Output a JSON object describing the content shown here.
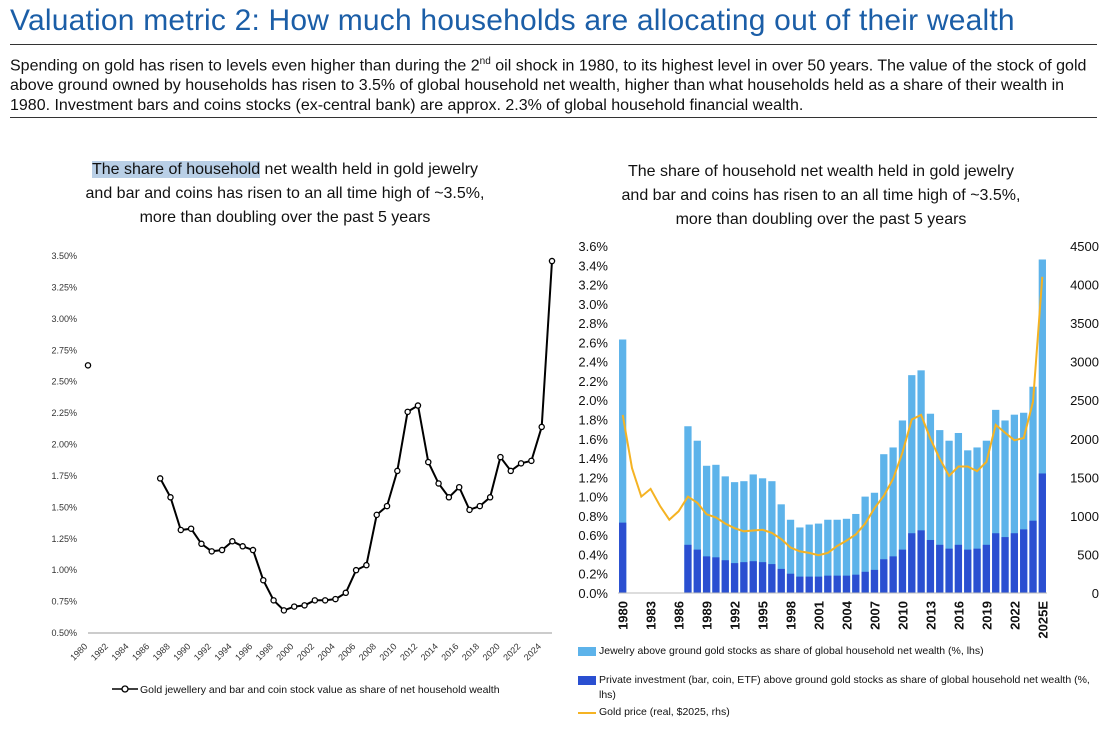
{
  "page": {
    "title": "Valuation metric 2: How much households are allocating out of their wealth",
    "intro_part1": "Spending on gold has risen to levels even higher than during the 2",
    "intro_sup": "nd",
    "intro_part2": " oil shock in 1980, to its highest level in over 50 years. The value of the stock of gold above ground owned by households has risen to 3.5% of global household net wealth, higher than what households held as a share of their wealth in 1980. Investment bars and coins stocks (ex-central bank) are approx. 2.3% of global household financial wealth."
  },
  "left_chart": {
    "heading_highlight": "The share of household",
    "heading_rest_line1": " net wealth held in gold jewelry",
    "heading_line2": "and bar and coins has risen to an all time high of ~3.5%,",
    "heading_line3": "more than doubling over the past 5 years"
  },
  "right_chart": {
    "heading_line1": "The share of household net wealth held in gold jewelry",
    "heading_line2": "and bar and coins has risen to an all time high of ~3.5%,",
    "heading_line3": "more than doubling over the past 5 years"
  },
  "colors": {
    "accent_title": "#1b5ea7",
    "jewelry": "#5db3ea",
    "private_investment": "#2a4fd1",
    "gold_price": "#f5b323",
    "line": "#000000"
  },
  "chart_data": [
    {
      "type": "line",
      "x": [
        1980,
        1987,
        1988,
        1989,
        1990,
        1991,
        1992,
        1993,
        1994,
        1995,
        1996,
        1997,
        1998,
        1999,
        2000,
        2001,
        2002,
        2003,
        2004,
        2005,
        2006,
        2007,
        2008,
        2009,
        2010,
        2011,
        2012,
        2013,
        2014,
        2015,
        2016,
        2017,
        2018,
        2019,
        2020,
        2021,
        2022,
        2023,
        2024,
        2025
      ],
      "x_ticks": [
        "1980",
        "1982",
        "1984",
        "1986",
        "1988",
        "1990",
        "1992",
        "1994",
        "1996",
        "1998",
        "2000",
        "2002",
        "2004",
        "2006",
        "2008",
        "2010",
        "2012",
        "2014",
        "2016",
        "2018",
        "2020",
        "2022",
        "2024"
      ],
      "series": [
        {
          "name": "Gold jewellery and bar and coin stock value as share of net household wealth",
          "values": [
            2.63,
            1.73,
            1.58,
            1.32,
            1.33,
            1.21,
            1.15,
            1.16,
            1.23,
            1.19,
            1.16,
            0.92,
            0.76,
            0.68,
            0.71,
            0.72,
            0.76,
            0.76,
            0.77,
            0.82,
            1.0,
            1.04,
            1.44,
            1.51,
            1.79,
            2.26,
            2.31,
            1.86,
            1.69,
            1.58,
            1.66,
            1.48,
            1.51,
            1.58,
            1.9,
            1.79,
            1.85,
            1.87,
            2.14,
            3.46
          ]
        }
      ],
      "y_ticks": [
        "0.50%",
        "0.75%",
        "1.00%",
        "1.25%",
        "1.50%",
        "1.75%",
        "2.00%",
        "2.25%",
        "2.50%",
        "2.75%",
        "3.00%",
        "3.25%",
        "3.50%"
      ],
      "ylim": [
        0.5,
        3.5
      ]
    },
    {
      "type": "bar",
      "categories": [
        "1980",
        "1981",
        "1982",
        "1983",
        "1984",
        "1985",
        "1986",
        "1987",
        "1988",
        "1989",
        "1990",
        "1991",
        "1992",
        "1993",
        "1994",
        "1995",
        "1996",
        "1997",
        "1998",
        "1999",
        "2000",
        "2001",
        "2002",
        "2003",
        "2004",
        "2005",
        "2006",
        "2007",
        "2008",
        "2009",
        "2010",
        "2011",
        "2012",
        "2013",
        "2014",
        "2015",
        "2016",
        "2017",
        "2018",
        "2019",
        "2020",
        "2021",
        "2022",
        "2023",
        "2024",
        "2025E"
      ],
      "x_ticks": [
        "1980",
        "1983",
        "1986",
        "1989",
        "1992",
        "1995",
        "1998",
        "2001",
        "2004",
        "2007",
        "2010",
        "2013",
        "2016",
        "2019",
        "2022",
        "2025E"
      ],
      "series": [
        {
          "name": "Jewelry above ground gold stocks as share of global household net wealth (%, lhs)",
          "values": [
            2.63,
            null,
            null,
            null,
            null,
            null,
            null,
            1.73,
            1.58,
            1.32,
            1.33,
            1.21,
            1.15,
            1.16,
            1.23,
            1.19,
            1.16,
            0.92,
            0.76,
            0.68,
            0.71,
            0.72,
            0.76,
            0.76,
            0.77,
            0.82,
            1.0,
            1.04,
            1.44,
            1.51,
            1.79,
            2.26,
            2.31,
            1.86,
            1.69,
            1.58,
            1.66,
            1.48,
            1.51,
            1.58,
            1.9,
            1.79,
            1.85,
            1.87,
            2.14,
            3.46
          ]
        },
        {
          "name": "Private investment (bar, coin, ETF) above ground gold stocks as share of global household net wealth (%, lhs)",
          "values": [
            0.73,
            null,
            null,
            null,
            null,
            null,
            null,
            0.5,
            0.45,
            0.38,
            0.37,
            0.34,
            0.31,
            0.32,
            0.33,
            0.32,
            0.3,
            0.25,
            0.2,
            0.17,
            0.17,
            0.17,
            0.18,
            0.18,
            0.18,
            0.19,
            0.22,
            0.24,
            0.35,
            0.38,
            0.45,
            0.62,
            0.65,
            0.55,
            0.5,
            0.46,
            0.5,
            0.45,
            0.46,
            0.5,
            0.62,
            0.58,
            0.62,
            0.66,
            0.75,
            1.24
          ]
        },
        {
          "name": "Gold price (real, $2025, rhs)",
          "axis": "right",
          "values": [
            2310,
            1620,
            1250,
            1350,
            1130,
            950,
            1060,
            1250,
            1170,
            1020,
            980,
            900,
            840,
            800,
            810,
            820,
            780,
            700,
            590,
            540,
            520,
            490,
            520,
            610,
            680,
            760,
            900,
            1100,
            1260,
            1480,
            1820,
            2250,
            2310,
            2000,
            1740,
            1520,
            1640,
            1640,
            1580,
            1700,
            2180,
            2080,
            1980,
            2010,
            2480,
            4100
          ]
        }
      ],
      "y_ticks_left": [
        "0.0%",
        "0.2%",
        "0.4%",
        "0.6%",
        "0.8%",
        "1.0%",
        "1.2%",
        "1.4%",
        "1.6%",
        "1.8%",
        "2.0%",
        "2.2%",
        "2.4%",
        "2.6%",
        "2.8%",
        "3.0%",
        "3.2%",
        "3.4%",
        "3.6%"
      ],
      "y_ticks_right": [
        "0",
        "500",
        "1000",
        "1500",
        "2000",
        "2500",
        "3000",
        "3500",
        "4000",
        "4500"
      ],
      "ylim_left": [
        0,
        3.6
      ],
      "ylim_right": [
        0,
        4500
      ],
      "legend_position": "bottom"
    }
  ]
}
